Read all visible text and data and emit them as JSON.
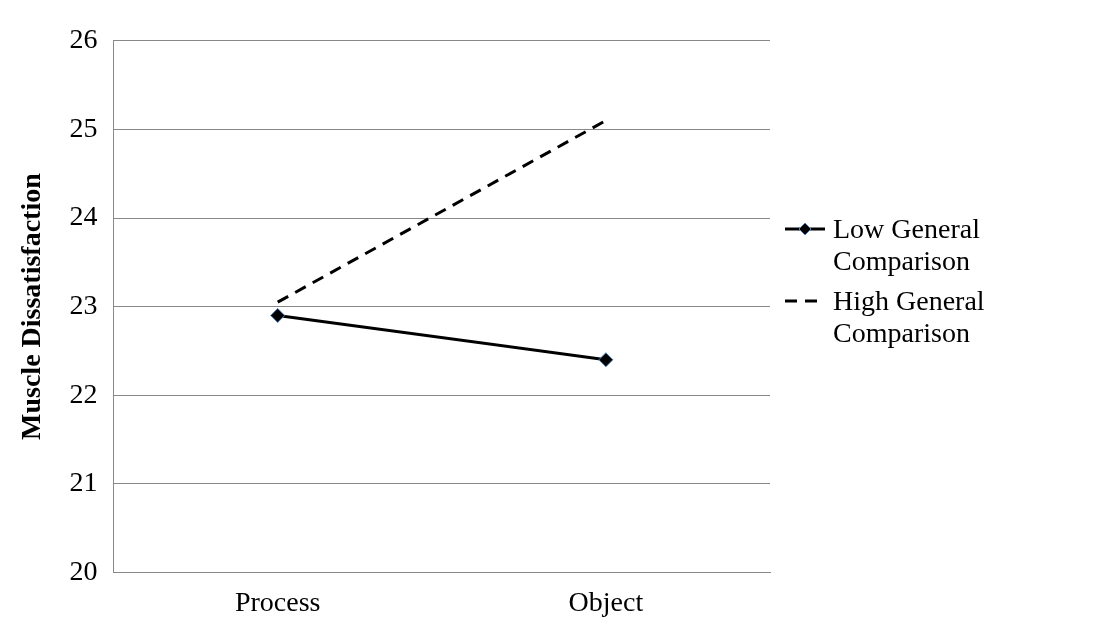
{
  "chart_data": {
    "type": "line",
    "ylabel": "Muscle Dissatisfaction",
    "categories": [
      "Process",
      "Object"
    ],
    "series": [
      {
        "name": "Low General Comparison",
        "color": "#000000",
        "values": [
          22.9,
          22.4
        ],
        "marker": "diamond",
        "line_style": "solid"
      },
      {
        "name": "High General Comparison",
        "color": "#000000",
        "values": [
          23.05,
          25.1
        ],
        "marker": "none",
        "line_style": "dashed"
      }
    ],
    "ylim": [
      20,
      26
    ],
    "yticks": [
      20,
      21,
      22,
      23,
      24,
      25,
      26
    ],
    "grid": "y",
    "legend": "right"
  }
}
